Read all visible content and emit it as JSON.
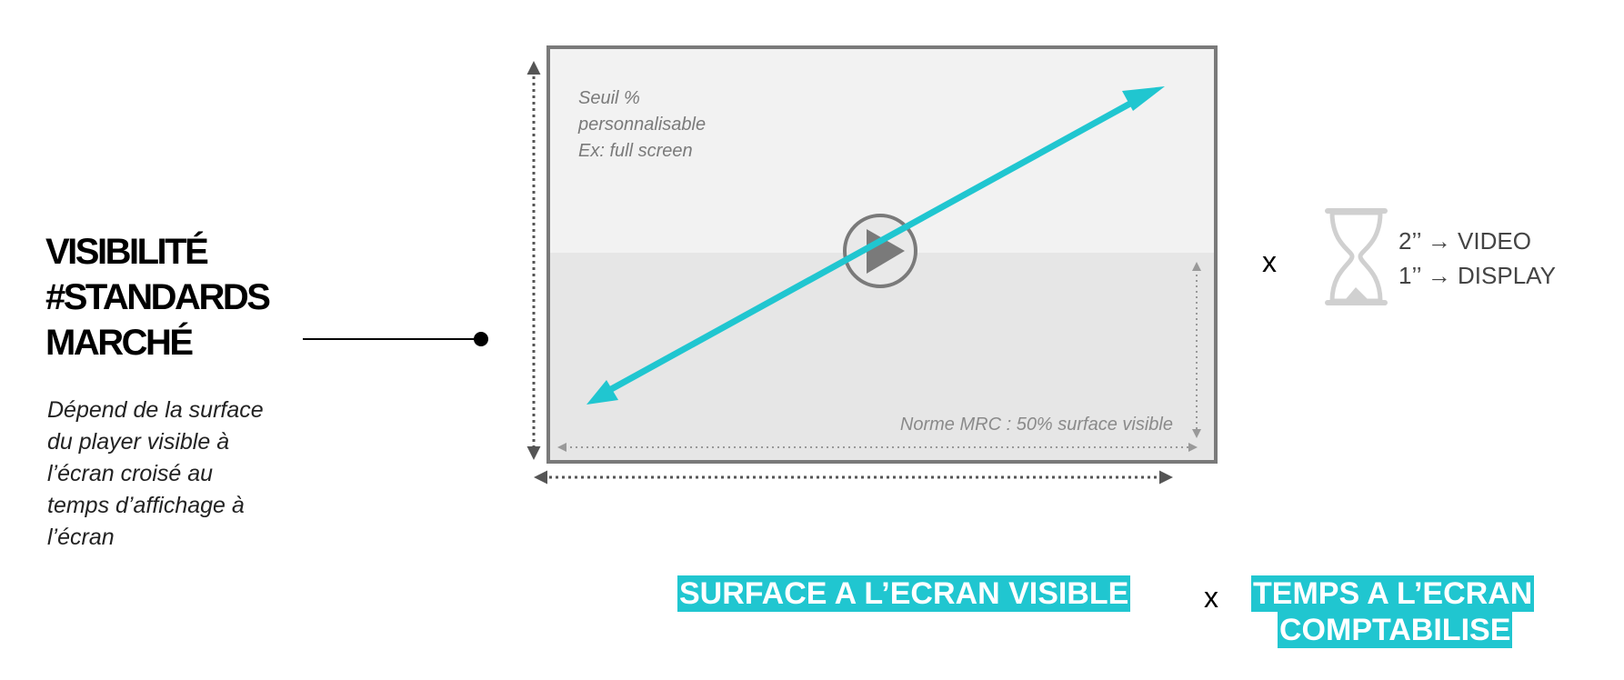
{
  "title": {
    "line1": "VISIBILITÉ",
    "line2": "#STANDARDS",
    "line3": "MARCHÉ"
  },
  "description": {
    "line1": "Dépend de la surface",
    "line2": "du player visible à",
    "line3": "l’écran croisé au",
    "line4": "temps d’affichage à",
    "line5": "l’écran"
  },
  "player": {
    "note_line1": "Seuil %",
    "note_line2": "personnalisable",
    "note_line3": "Ex: full screen",
    "norm_label": "Norme MRC : 50% surface visible",
    "visible_surface_fraction": 0.5
  },
  "timer": {
    "multiplier": "x",
    "rule1": "2’’ → VIDEO",
    "rule2": "1’’ → DISPLAY",
    "icon": "hourglass-icon"
  },
  "formula": {
    "term1": "SURFACE A L’ECRAN VISIBLE",
    "operator": "x",
    "term2_line1": "TEMPS A L’ECRAN",
    "term2_line2": "COMPTABILISE"
  },
  "colors": {
    "accent": "#20c6d0",
    "frame": "#7a7a7a",
    "player_top": "#f2f2f2",
    "player_bottom": "#e6e6e6"
  }
}
